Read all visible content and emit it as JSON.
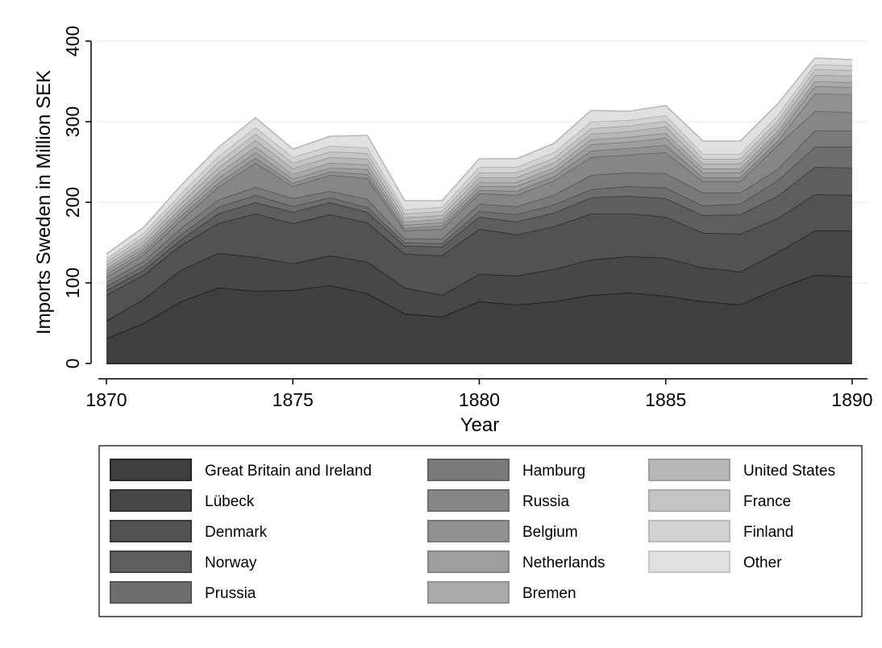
{
  "chart_data": {
    "type": "area",
    "stacked": true,
    "xlabel": "Year",
    "ylabel": "Imports Sweden in Million SEK",
    "xlim": [
      1870,
      1890
    ],
    "ylim": [
      0,
      400
    ],
    "xticks": [
      1870,
      1875,
      1880,
      1885,
      1890
    ],
    "yticks": [
      0,
      100,
      200,
      300,
      400
    ],
    "grid": true,
    "legend_position": "bottom",
    "x": [
      1870,
      1871,
      1872,
      1873,
      1874,
      1875,
      1876,
      1877,
      1878,
      1879,
      1880,
      1881,
      1882,
      1883,
      1884,
      1885,
      1886,
      1887,
      1888,
      1889,
      1890
    ],
    "series": [
      {
        "name": "Great Britain and Ireland",
        "color": "#3f3f3f",
        "values": [
          31,
          50,
          77,
          94,
          90,
          91,
          97,
          87,
          62,
          58,
          77,
          73,
          77,
          85,
          88,
          84,
          77,
          73,
          93,
          110,
          108
        ]
      },
      {
        "name": "Lübeck",
        "color": "#474747",
        "values": [
          22,
          30,
          39,
          43,
          42,
          33,
          37,
          39,
          32,
          27,
          34,
          36,
          40,
          44,
          45,
          47,
          42,
          41,
          45,
          55,
          57
        ]
      },
      {
        "name": "Denmark",
        "color": "#525252",
        "values": [
          32,
          30,
          31,
          37,
          54,
          50,
          51,
          49,
          42,
          49,
          56,
          51,
          53,
          57,
          53,
          51,
          43,
          47,
          42,
          45,
          44
        ]
      },
      {
        "name": "Norway",
        "color": "#5e5e5e",
        "values": [
          6,
          6,
          7,
          12,
          14,
          14,
          15,
          13,
          10,
          11,
          15,
          16,
          17,
          20,
          22,
          23,
          22,
          24,
          28,
          34,
          34
        ]
      },
      {
        "name": "Prussia",
        "color": "#6e6e6e",
        "values": [
          5,
          5,
          6,
          8,
          9,
          7,
          6,
          6,
          4,
          4,
          7,
          9,
          10,
          10,
          12,
          13,
          12,
          13,
          19,
          25,
          26
        ]
      },
      {
        "name": "Hamburg",
        "color": "#7a7a7a",
        "values": [
          5,
          6,
          8,
          9,
          10,
          10,
          8,
          10,
          5,
          6,
          9,
          10,
          12,
          18,
          17,
          18,
          16,
          14,
          14,
          20,
          20
        ]
      },
      {
        "name": "Russia",
        "color": "#868686",
        "values": [
          6,
          8,
          10,
          16,
          30,
          15,
          20,
          26,
          10,
          12,
          13,
          14,
          18,
          22,
          22,
          26,
          14,
          14,
          30,
          24,
          23
        ]
      },
      {
        "name": "Belgium",
        "color": "#919191",
        "values": [
          4,
          4,
          5,
          5,
          6,
          4,
          4,
          5,
          3,
          4,
          4,
          5,
          5,
          8,
          8,
          9,
          5,
          5,
          5,
          22,
          22
        ]
      },
      {
        "name": "Netherlands",
        "color": "#9e9e9e",
        "values": [
          4,
          4,
          5,
          6,
          7,
          5,
          5,
          6,
          4,
          4,
          5,
          6,
          6,
          8,
          8,
          9,
          6,
          6,
          7,
          9,
          9
        ]
      },
      {
        "name": "Bremen",
        "color": "#aaaaaa",
        "values": [
          3,
          4,
          5,
          6,
          7,
          6,
          6,
          6,
          4,
          4,
          5,
          5,
          5,
          6,
          6,
          6,
          5,
          5,
          5,
          6,
          6
        ]
      },
      {
        "name": "United States",
        "color": "#b7b7b7",
        "values": [
          4,
          5,
          6,
          7,
          8,
          7,
          7,
          7,
          5,
          5,
          6,
          6,
          6,
          7,
          7,
          8,
          6,
          6,
          7,
          8,
          8
        ]
      },
      {
        "name": "France",
        "color": "#c4c4c4",
        "values": [
          4,
          5,
          6,
          7,
          8,
          7,
          7,
          7,
          5,
          5,
          6,
          6,
          6,
          7,
          7,
          7,
          6,
          6,
          6,
          7,
          7
        ]
      },
      {
        "name": "Finland",
        "color": "#d2d2d2",
        "values": [
          4,
          5,
          6,
          7,
          8,
          7,
          7,
          7,
          5,
          5,
          7,
          7,
          7,
          8,
          7,
          7,
          6,
          6,
          7,
          6,
          6
        ]
      },
      {
        "name": "Other",
        "color": "#e0e0e0",
        "values": [
          6,
          7,
          10,
          11,
          12,
          10,
          12,
          15,
          11,
          8,
          10,
          10,
          11,
          14,
          11,
          12,
          16,
          16,
          14,
          8,
          7
        ]
      }
    ]
  }
}
